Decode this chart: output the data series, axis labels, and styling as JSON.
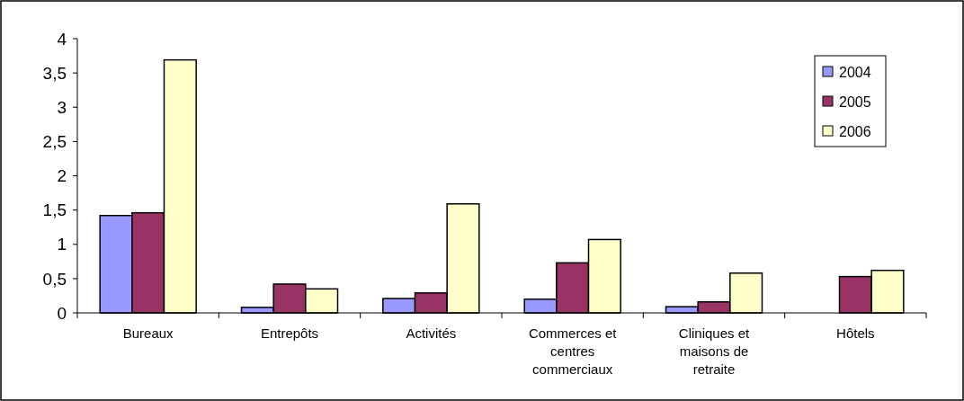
{
  "chart_data": {
    "type": "bar",
    "categories": [
      "Bureaux",
      "Entrepôts",
      "Activités",
      "Commerces et centres commerciaux",
      "Cliniques et maisons de retraite",
      "Hôtels"
    ],
    "series": [
      {
        "name": "2004",
        "color": "#9999ff",
        "values": [
          1.42,
          0.08,
          0.21,
          0.2,
          0.09,
          null
        ]
      },
      {
        "name": "2005",
        "color": "#993366",
        "values": [
          1.46,
          0.42,
          0.29,
          0.73,
          0.16,
          0.53
        ]
      },
      {
        "name": "2006",
        "color": "#ffffcc",
        "values": [
          3.69,
          0.35,
          1.59,
          1.07,
          0.58,
          0.62
        ]
      }
    ],
    "ylim": [
      0,
      4
    ],
    "yticks": [
      0,
      {
        "value": 0.5,
        "label": "0,5"
      },
      1,
      {
        "value": 1.5,
        "label": "1,5"
      },
      2,
      {
        "value": 2.5,
        "label": "2,5"
      },
      3,
      {
        "value": 3.5,
        "label": "3,5"
      },
      4
    ],
    "grid": false,
    "legend": "top right"
  }
}
